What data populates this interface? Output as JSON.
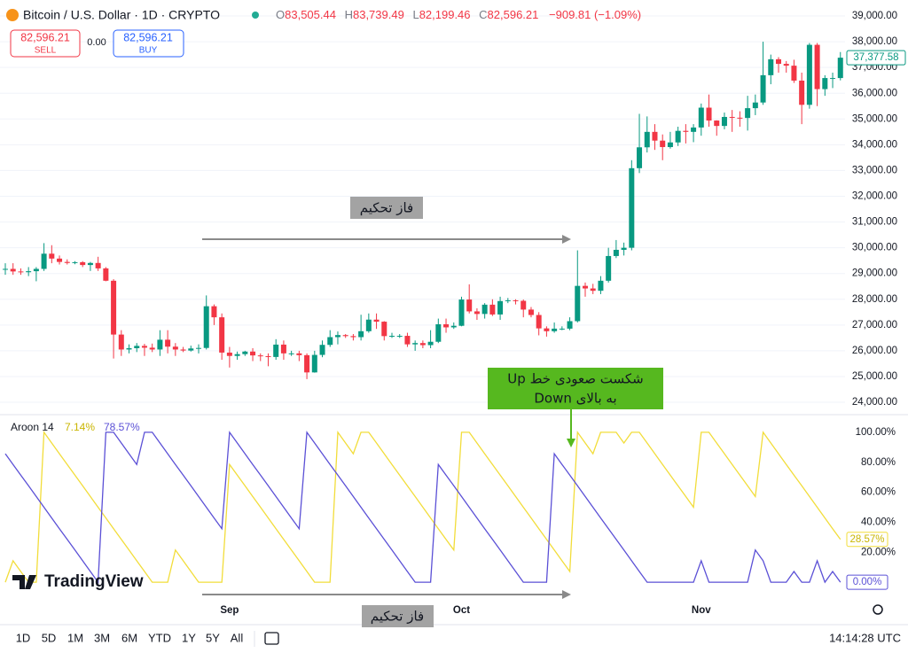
{
  "header": {
    "symbol": "Bitcoin / U.S. Dollar · 1D · CRYPTO",
    "ohlc": [
      {
        "key": "O",
        "value": "83,505.44"
      },
      {
        "key": "H",
        "value": "83,739.49"
      },
      {
        "key": "L",
        "value": "82,199.46"
      },
      {
        "key": "C",
        "value": "82,596.21"
      }
    ],
    "change": "−909.81 (−1.09%)",
    "sell": {
      "price": "82,596.21",
      "label": "SELL"
    },
    "spread": "0.00",
    "buy": {
      "price": "82,596.21",
      "label": "BUY"
    }
  },
  "chart_data": [
    {
      "type": "candlestick",
      "up_color": "#089981",
      "down_color": "#f23645",
      "grid": true,
      "categories": [
        null,
        null,
        null,
        null,
        null,
        null,
        null,
        null,
        null,
        null,
        null,
        null,
        null,
        null,
        null,
        null,
        null,
        null,
        null,
        null,
        null,
        null,
        null,
        null,
        null,
        null,
        null,
        null,
        null,
        "Sep",
        null,
        null,
        null,
        null,
        null,
        null,
        null,
        null,
        null,
        null,
        null,
        null,
        null,
        null,
        null,
        null,
        null,
        null,
        null,
        null,
        null,
        null,
        null,
        null,
        null,
        null,
        null,
        null,
        null,
        "Oct",
        null,
        null,
        null,
        null,
        null,
        null,
        null,
        null,
        null,
        null,
        null,
        null,
        null,
        null,
        null,
        null,
        null,
        null,
        null,
        null,
        null,
        null,
        null,
        null,
        null,
        null,
        null,
        null,
        null,
        null,
        "Nov",
        null,
        null,
        null,
        null,
        null,
        null,
        null,
        null,
        null,
        null,
        null,
        null,
        null,
        null,
        null,
        null,
        null,
        null
      ],
      "open": [
        29170,
        29180,
        29080,
        29050,
        29090,
        29180,
        29770,
        29580,
        29450,
        29410,
        29440,
        29330,
        29410,
        29200,
        28720,
        26630,
        26050,
        26100,
        26190,
        26120,
        26050,
        26430,
        26160,
        26050,
        26010,
        26090,
        26110,
        27730,
        27300,
        25930,
        25800,
        25870,
        25970,
        25820,
        25790,
        25760,
        26240,
        25900,
        25900,
        25830,
        25160,
        25840,
        26230,
        26530,
        26610,
        26570,
        26530,
        26760,
        27210,
        27130,
        26570,
        26580,
        26580,
        26250,
        26300,
        26220,
        26350,
        27030,
        26910,
        26970,
        27990,
        27530,
        27430,
        27790,
        27410,
        27930,
        27960,
        27940,
        27600,
        27390,
        26870,
        26760,
        26860,
        26860,
        27150,
        28520,
        28420,
        28330,
        28720,
        29680,
        29920,
        30000,
        33090,
        33900,
        34500,
        34160,
        33910,
        34090,
        34540,
        34500,
        34670,
        35440,
        34940,
        34730,
        35080,
        35050,
        35040,
        35420,
        35640,
        36700,
        37320,
        37140,
        37070,
        36490,
        35550,
        37880,
        36160,
        36590,
        36590
      ],
      "high": [
        29400,
        29400,
        29200,
        29250,
        29250,
        30180,
        30100,
        29700,
        29550,
        29480,
        29480,
        29450,
        29650,
        29250,
        28780,
        26800,
        26250,
        26300,
        26270,
        26280,
        26800,
        26800,
        26300,
        26150,
        26200,
        26250,
        28150,
        27800,
        27450,
        26150,
        25970,
        26000,
        26100,
        25900,
        25900,
        26450,
        26400,
        26000,
        26000,
        25900,
        26000,
        26400,
        26800,
        26750,
        26650,
        26650,
        27400,
        27450,
        27450,
        27150,
        26700,
        26650,
        26700,
        26400,
        26400,
        26800,
        27250,
        27250,
        27100,
        28100,
        28580,
        27650,
        27850,
        28000,
        28100,
        28050,
        28000,
        27990,
        27700,
        27500,
        26950,
        27100,
        26950,
        27300,
        29900,
        28650,
        28600,
        28900,
        30000,
        30300,
        30200,
        33400,
        35200,
        35100,
        34800,
        34400,
        34500,
        34700,
        34800,
        34800,
        35600,
        35950,
        34950,
        35250,
        35350,
        35300,
        35900,
        35950,
        38000,
        37500,
        37400,
        37250,
        37300,
        36800,
        37950,
        37950,
        36700,
        36800,
        37600
      ],
      "low": [
        28950,
        28950,
        28950,
        28900,
        28700,
        29100,
        29400,
        29350,
        29350,
        29360,
        29250,
        29100,
        29100,
        28700,
        25700,
        25800,
        25900,
        25950,
        25800,
        25950,
        25800,
        25900,
        25800,
        25950,
        25970,
        25900,
        26050,
        27000,
        25650,
        25350,
        25650,
        25800,
        25600,
        25600,
        25400,
        25650,
        25650,
        25800,
        25600,
        24900,
        25150,
        25750,
        26150,
        26250,
        26500,
        26400,
        26400,
        26700,
        26850,
        26400,
        26500,
        26500,
        26150,
        26000,
        26100,
        26100,
        26300,
        26700,
        26850,
        26950,
        27450,
        27200,
        27250,
        27350,
        27200,
        27850,
        27800,
        27300,
        27300,
        26600,
        26550,
        26700,
        26800,
        26800,
        27100,
        28100,
        28200,
        28200,
        28650,
        29600,
        29700,
        29900,
        32900,
        33700,
        33800,
        33400,
        33850,
        33950,
        34050,
        34100,
        34350,
        34700,
        34350,
        34600,
        34500,
        34700,
        34550,
        35150,
        35550,
        36350,
        36800,
        36800,
        36400,
        34800,
        35400,
        35500,
        35900,
        36200,
        36500
      ],
      "close": [
        29180,
        29080,
        29050,
        29090,
        29180,
        29770,
        29580,
        29450,
        29410,
        29440,
        29330,
        29410,
        29200,
        28720,
        26630,
        26050,
        26100,
        26190,
        26120,
        26050,
        26430,
        26160,
        26050,
        26010,
        26090,
        26110,
        27730,
        27300,
        25930,
        25800,
        25870,
        25970,
        25820,
        25790,
        25760,
        26240,
        25900,
        25900,
        25830,
        25160,
        25840,
        26230,
        26530,
        26610,
        26570,
        26530,
        26760,
        27210,
        27130,
        26570,
        26580,
        26580,
        26250,
        26300,
        26220,
        26350,
        27030,
        26910,
        26970,
        27990,
        27530,
        27430,
        27790,
        27410,
        27930,
        27960,
        27940,
        27600,
        27390,
        26870,
        26760,
        26860,
        26860,
        27150,
        28520,
        28420,
        28330,
        28720,
        29680,
        29920,
        30000,
        33090,
        33900,
        34500,
        34160,
        33910,
        34090,
        34540,
        34500,
        34670,
        35440,
        34940,
        34730,
        35080,
        35050,
        35040,
        35420,
        35640,
        36700,
        37320,
        37140,
        37070,
        36490,
        35550,
        37880,
        36160,
        36590,
        36590,
        37380
      ],
      "last_price": {
        "value": 37377.58,
        "label": "37,377.58"
      },
      "ylim": [
        23520,
        39620
      ],
      "yticks": [
        {
          "value": 24000,
          "label": "24,000.00"
        },
        {
          "value": 25000,
          "label": "25,000.00"
        },
        {
          "value": 26000,
          "label": "26,000.00"
        },
        {
          "value": 27000,
          "label": "27,000.00"
        },
        {
          "value": 28000,
          "label": "28,000.00"
        },
        {
          "value": 29000,
          "label": "29,000.00"
        },
        {
          "value": 30000,
          "label": "30,000.00"
        },
        {
          "value": 31000,
          "label": "31,000.00"
        },
        {
          "value": 32000,
          "label": "32,000.00"
        },
        {
          "value": 33000,
          "label": "33,000.00"
        },
        {
          "value": 34000,
          "label": "34,000.00"
        },
        {
          "value": 35000,
          "label": "35,000.00"
        },
        {
          "value": 36000,
          "label": "36,000.00"
        },
        {
          "value": 37000,
          "label": "37,000.00"
        },
        {
          "value": 38000,
          "label": "38,000.00"
        },
        {
          "value": 39000,
          "label": "39,000.00"
        }
      ]
    },
    {
      "type": "line",
      "title": "Aroon 14",
      "grid": false,
      "series": [
        {
          "color": "#f2dd3a",
          "label_color": "#c9b500",
          "values": [
            0,
            14.29,
            7.14,
            0,
            0,
            100,
            92.86,
            85.71,
            78.57,
            71.43,
            64.29,
            57.14,
            50,
            42.86,
            35.71,
            28.57,
            21.43,
            14.29,
            7.14,
            0,
            0,
            0,
            21.43,
            14.29,
            7.14,
            0,
            0,
            0,
            0,
            78.57,
            71.43,
            64.29,
            57.14,
            50,
            42.86,
            35.71,
            28.57,
            21.43,
            14.29,
            7.14,
            0,
            0,
            0,
            100,
            92.86,
            85.71,
            100,
            100,
            92.86,
            85.71,
            78.57,
            71.43,
            64.29,
            57.14,
            50,
            42.86,
            35.71,
            28.57,
            21.43,
            100,
            100,
            92.86,
            85.71,
            78.57,
            71.43,
            64.29,
            57.14,
            50,
            42.86,
            35.71,
            28.57,
            21.43,
            14.29,
            7.14,
            100,
            92.86,
            85.71,
            100,
            100,
            100,
            92.86,
            100,
            100,
            92.86,
            85.71,
            78.57,
            71.43,
            64.29,
            57.14,
            50,
            100,
            100,
            92.86,
            85.71,
            78.57,
            71.43,
            64.29,
            57.14,
            100,
            92.86,
            85.71,
            78.57,
            71.43,
            64.29,
            57.14,
            50,
            42.86,
            35.71,
            28.57
          ],
          "legend_value": {
            "value": 7.14,
            "label": "7.14%"
          },
          "last_label": {
            "value": 28.57,
            "label": "28.57%"
          }
        },
        {
          "color": "#5b50d6",
          "label_color": "#5b50d6",
          "values": [
            85.71,
            78.57,
            71.43,
            64.29,
            57.14,
            50,
            42.86,
            35.71,
            28.57,
            21.43,
            14.29,
            7.14,
            0,
            100,
            100,
            92.86,
            85.71,
            78.57,
            100,
            100,
            92.86,
            85.71,
            78.57,
            71.43,
            64.29,
            57.14,
            50,
            42.86,
            35.71,
            100,
            92.86,
            85.71,
            78.57,
            71.43,
            64.29,
            57.14,
            50,
            42.86,
            35.71,
            100,
            92.86,
            85.71,
            78.57,
            71.43,
            64.29,
            57.14,
            50,
            42.86,
            35.71,
            28.57,
            21.43,
            14.29,
            7.14,
            0,
            0,
            0,
            78.57,
            71.43,
            64.29,
            57.14,
            50,
            42.86,
            35.71,
            28.57,
            21.43,
            14.29,
            7.14,
            0,
            0,
            0,
            0,
            85.71,
            78.57,
            71.43,
            64.29,
            57.14,
            50,
            42.86,
            35.71,
            28.57,
            21.43,
            14.29,
            7.14,
            0,
            0,
            0,
            0,
            0,
            0,
            0,
            14.29,
            0,
            0,
            0,
            0,
            0,
            0,
            21.43,
            14.29,
            0,
            0,
            0,
            7.14,
            0,
            0,
            14.29,
            0,
            7.14,
            0
          ],
          "legend_value": {
            "value": 78.57,
            "label": "78.57%"
          },
          "last_label": {
            "value": 0,
            "label": "0.00%"
          }
        }
      ],
      "ylim": [
        -10,
        110
      ],
      "yticks": [
        {
          "value": 20,
          "label": "20.00%"
        },
        {
          "value": 40,
          "label": "40.00%"
        },
        {
          "value": 60,
          "label": "60.00%"
        },
        {
          "value": 80,
          "label": "80.00%"
        },
        {
          "value": 100,
          "label": "100.00%"
        }
      ]
    }
  ],
  "annotations": {
    "phase_labels": [
      "فاز تحکیم",
      "فاز تحکیم"
    ],
    "breakout_note": [
      "شکست صعودی خط Up",
      "به بالای Down"
    ]
  },
  "brand": "TradingView",
  "toolbar": {
    "timeframes": [
      "1D",
      "5D",
      "1M",
      "3M",
      "6M",
      "YTD",
      "1Y",
      "5Y",
      "All"
    ],
    "clock": "14:14:28 UTC"
  }
}
